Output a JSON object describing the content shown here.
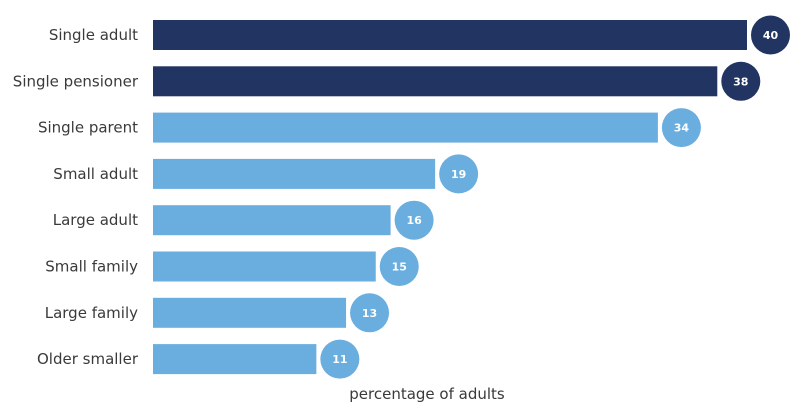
{
  "chart_data": {
    "type": "bar",
    "orientation": "horizontal",
    "categories": [
      "Single adult",
      "Single pensioner",
      "Single parent",
      "Small adult",
      "Large adult",
      "Small family",
      "Large family",
      "Older smaller"
    ],
    "values": [
      40,
      38,
      34,
      19,
      16,
      15,
      13,
      11
    ],
    "highlighted": [
      true,
      true,
      false,
      false,
      false,
      false,
      false,
      false
    ],
    "xlabel": "percentage of adults",
    "xlim": [
      0,
      40
    ],
    "grid": false,
    "colors": {
      "highlight": "#223462",
      "normal": "#6aaee0"
    }
  }
}
